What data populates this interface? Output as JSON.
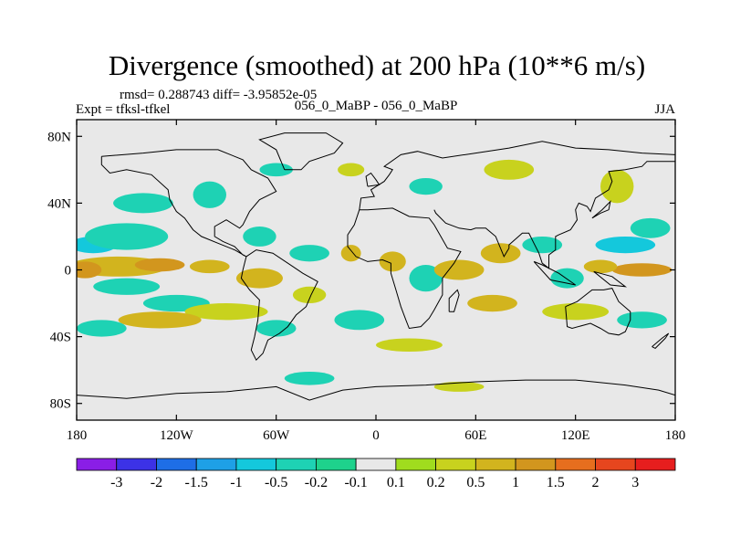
{
  "chart_data": {
    "type": "heatmap",
    "title": "Divergence (smoothed) at 200 hPa (10**6 m/s)",
    "stats_line": "rmsd= 0.288743 diff= -3.95852e-05",
    "experiment": "Expt = tfksl-tfkel",
    "case_label": "056_0_MaBP - 056_0_MaBP",
    "season": "JJA",
    "xlabel": "",
    "ylabel": "",
    "x_range": [
      -180,
      180
    ],
    "y_range": [
      -90,
      90
    ],
    "x_ticks": [
      {
        "value": -180,
        "label": "180"
      },
      {
        "value": -120,
        "label": "120W"
      },
      {
        "value": -60,
        "label": "60W"
      },
      {
        "value": 0,
        "label": "0"
      },
      {
        "value": 60,
        "label": "60E"
      },
      {
        "value": 120,
        "label": "120E"
      },
      {
        "value": 180,
        "label": "180"
      }
    ],
    "y_ticks": [
      {
        "value": 80,
        "label": "80N"
      },
      {
        "value": 40,
        "label": "40N"
      },
      {
        "value": 0,
        "label": "0"
      },
      {
        "value": -40,
        "label": "40S"
      },
      {
        "value": -80,
        "label": "80S"
      }
    ],
    "colorbar": {
      "labels": [
        "-3",
        "-2",
        "-1.5",
        "-1",
        "-0.5",
        "-0.2",
        "-0.1",
        "0.1",
        "0.2",
        "0.5",
        "1",
        "1.5",
        "2",
        "3"
      ],
      "levels": [
        -3,
        -2,
        -1.5,
        -1,
        -0.5,
        -0.2,
        -0.1,
        0.1,
        0.2,
        0.5,
        1,
        1.5,
        2,
        3
      ],
      "colors": [
        "#8a1ee6",
        "#3c32e6",
        "#1e6ee6",
        "#1ea0e6",
        "#14c8dc",
        "#1ed2b4",
        "#1ed28c",
        "#e8e8e8",
        "#a0dc1e",
        "#c8d21e",
        "#d2b41e",
        "#d2961e",
        "#e66e1e",
        "#e6461e",
        "#e61e1e"
      ]
    },
    "field_blobs": [
      {
        "lon": -170,
        "lat": 15,
        "rlon": 14,
        "rlat": 5,
        "v": -0.7
      },
      {
        "lon": -150,
        "lat": 20,
        "rlon": 25,
        "rlat": 8,
        "v": -0.3
      },
      {
        "lon": -155,
        "lat": 2,
        "rlon": 30,
        "rlat": 6,
        "v": 0.8
      },
      {
        "lon": -175,
        "lat": 0,
        "rlon": 10,
        "rlat": 5,
        "v": 1.2
      },
      {
        "lon": -130,
        "lat": 3,
        "rlon": 15,
        "rlat": 4,
        "v": 1.2
      },
      {
        "lon": -100,
        "lat": 2,
        "rlon": 12,
        "rlat": 4,
        "v": 0.8
      },
      {
        "lon": -140,
        "lat": 40,
        "rlon": 18,
        "rlat": 6,
        "v": -0.3
      },
      {
        "lon": -100,
        "lat": 45,
        "rlon": 10,
        "rlat": 8,
        "v": -0.3
      },
      {
        "lon": -70,
        "lat": 20,
        "rlon": 10,
        "rlat": 6,
        "v": -0.3
      },
      {
        "lon": -40,
        "lat": 10,
        "rlon": 12,
        "rlat": 5,
        "v": -0.3
      },
      {
        "lon": -70,
        "lat": -5,
        "rlon": 14,
        "rlat": 6,
        "v": 0.6
      },
      {
        "lon": -40,
        "lat": -15,
        "rlon": 10,
        "rlat": 5,
        "v": 0.4
      },
      {
        "lon": -150,
        "lat": -10,
        "rlon": 20,
        "rlat": 5,
        "v": -0.4
      },
      {
        "lon": -120,
        "lat": -20,
        "rlon": 20,
        "rlat": 5,
        "v": -0.5
      },
      {
        "lon": -90,
        "lat": -25,
        "rlon": 25,
        "rlat": 5,
        "v": 0.4
      },
      {
        "lon": -130,
        "lat": -30,
        "rlon": 25,
        "rlat": 5,
        "v": 0.7
      },
      {
        "lon": -165,
        "lat": -35,
        "rlon": 15,
        "rlat": 5,
        "v": -0.5
      },
      {
        "lon": -60,
        "lat": -35,
        "rlon": 12,
        "rlat": 5,
        "v": -0.3
      },
      {
        "lon": -10,
        "lat": -30,
        "rlon": 15,
        "rlat": 6,
        "v": -0.4
      },
      {
        "lon": 10,
        "lat": 5,
        "rlon": 8,
        "rlat": 6,
        "v": 0.6
      },
      {
        "lon": -15,
        "lat": 10,
        "rlon": 6,
        "rlat": 5,
        "v": 0.7
      },
      {
        "lon": 30,
        "lat": -5,
        "rlon": 10,
        "rlat": 8,
        "v": -0.5
      },
      {
        "lon": 50,
        "lat": 0,
        "rlon": 15,
        "rlat": 6,
        "v": 0.9
      },
      {
        "lon": 75,
        "lat": 10,
        "rlon": 12,
        "rlat": 6,
        "v": 0.7
      },
      {
        "lon": 100,
        "lat": 15,
        "rlon": 12,
        "rlat": 5,
        "v": -0.5
      },
      {
        "lon": 115,
        "lat": -5,
        "rlon": 10,
        "rlat": 6,
        "v": -0.5
      },
      {
        "lon": 150,
        "lat": 15,
        "rlon": 18,
        "rlat": 5,
        "v": -0.6
      },
      {
        "lon": 165,
        "lat": 25,
        "rlon": 12,
        "rlat": 6,
        "v": -0.3
      },
      {
        "lon": 160,
        "lat": 0,
        "rlon": 18,
        "rlat": 4,
        "v": 1.1
      },
      {
        "lon": 135,
        "lat": 2,
        "rlon": 10,
        "rlat": 4,
        "v": 0.8
      },
      {
        "lon": 70,
        "lat": -20,
        "rlon": 15,
        "rlat": 5,
        "v": 0.5
      },
      {
        "lon": 120,
        "lat": -25,
        "rlon": 20,
        "rlat": 5,
        "v": 0.4
      },
      {
        "lon": 160,
        "lat": -30,
        "rlon": 15,
        "rlat": 5,
        "v": -0.3
      },
      {
        "lon": 20,
        "lat": -45,
        "rlon": 20,
        "rlat": 4,
        "v": 0.3
      },
      {
        "lon": 80,
        "lat": 60,
        "rlon": 15,
        "rlat": 6,
        "v": 0.3
      },
      {
        "lon": 145,
        "lat": 50,
        "rlon": 10,
        "rlat": 10,
        "v": 0.3
      },
      {
        "lon": 30,
        "lat": 50,
        "rlon": 10,
        "rlat": 5,
        "v": -0.3
      },
      {
        "lon": -60,
        "lat": 60,
        "rlon": 10,
        "rlat": 4,
        "v": -0.3
      },
      {
        "lon": -15,
        "lat": 60,
        "rlon": 8,
        "rlat": 4,
        "v": 0.3
      },
      {
        "lon": -40,
        "lat": -65,
        "rlon": 15,
        "rlat": 4,
        "v": -0.3
      },
      {
        "lon": 50,
        "lat": -70,
        "rlon": 15,
        "rlat": 3,
        "v": 0.3
      }
    ]
  }
}
